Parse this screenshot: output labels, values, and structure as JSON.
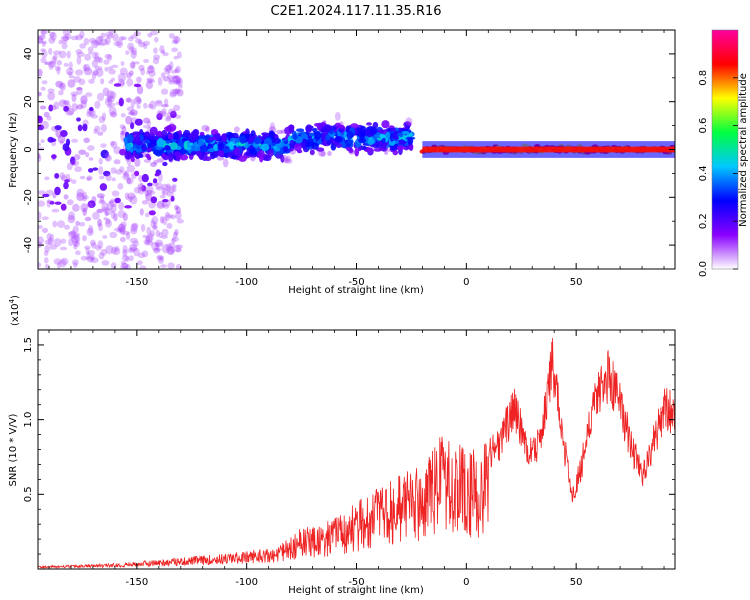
{
  "title": "C2E1.2024.117.11.35.R16",
  "chart_data": [
    {
      "type": "heatmap",
      "name": "spectrogram",
      "xlabel": "Height of straight line (km)",
      "ylabel": "Frequency (Hz)",
      "xlim": [
        -195,
        95
      ],
      "ylim": [
        -50,
        50
      ],
      "xticks": [
        -150,
        -100,
        -50,
        0,
        50
      ],
      "yticks": [
        -40,
        -20,
        0,
        20,
        40
      ],
      "colorbar": {
        "label": "Normalized spectral amplitude",
        "range": [
          0,
          1
        ],
        "ticks": [
          0.0,
          0.2,
          0.4,
          0.6,
          0.8
        ],
        "tick_labels": [
          "0.0",
          "0.2",
          "0.4",
          "0.6",
          "0.8"
        ],
        "colors": [
          "#ffffff",
          "#8a00ff",
          "#0000ff",
          "#00c8ff",
          "#00ff40",
          "#ffff00",
          "#ff0000",
          "#ff00a0"
        ]
      },
      "description_bands": [
        {
          "x_from": -195,
          "x_to": -130,
          "freq_spread": 50,
          "peak_amplitude": 0.25
        },
        {
          "x_from": -155,
          "x_to": -25,
          "freq_spread": 10,
          "peak_amplitude": 0.5
        },
        {
          "x_from": -20,
          "x_to": 95,
          "freq_spread": 2,
          "peak_amplitude": 0.95
        }
      ]
    },
    {
      "type": "line",
      "name": "snr",
      "xlabel": "Height of straight line (km)",
      "ylabel": "SNR (10 * V/V)",
      "y_multiplier": "(x10",
      "y_multiplier_exp": "4",
      "y_multiplier_close": ")",
      "xlim": [
        -195,
        95
      ],
      "ylim": [
        0,
        1.6
      ],
      "xticks": [
        -150,
        -100,
        -50,
        0,
        50
      ],
      "yticks": [
        0.5,
        1.0,
        1.5
      ],
      "ytick_labels": [
        "0.5",
        "1.0",
        "1.5"
      ],
      "color": "#ee2222",
      "envelope": [
        [
          -195,
          0.02
        ],
        [
          -170,
          0.03
        ],
        [
          -150,
          0.05
        ],
        [
          -135,
          0.07
        ],
        [
          -120,
          0.09
        ],
        [
          -100,
          0.12
        ],
        [
          -85,
          0.16
        ],
        [
          -75,
          0.28
        ],
        [
          -60,
          0.35
        ],
        [
          -50,
          0.45
        ],
        [
          -40,
          0.55
        ],
        [
          -30,
          0.65
        ],
        [
          -20,
          0.7
        ],
        [
          -12,
          0.9
        ],
        [
          -5,
          0.85
        ],
        [
          5,
          0.8
        ],
        [
          15,
          0.95
        ],
        [
          22,
          1.25
        ],
        [
          28,
          0.85
        ],
        [
          34,
          1.0
        ],
        [
          39,
          1.58
        ],
        [
          44,
          1.0
        ],
        [
          48,
          0.55
        ],
        [
          52,
          0.75
        ],
        [
          58,
          1.3
        ],
        [
          65,
          1.48
        ],
        [
          70,
          1.25
        ],
        [
          75,
          0.95
        ],
        [
          80,
          0.7
        ],
        [
          86,
          1.0
        ],
        [
          90,
          1.22
        ],
        [
          95,
          1.2
        ]
      ]
    }
  ]
}
